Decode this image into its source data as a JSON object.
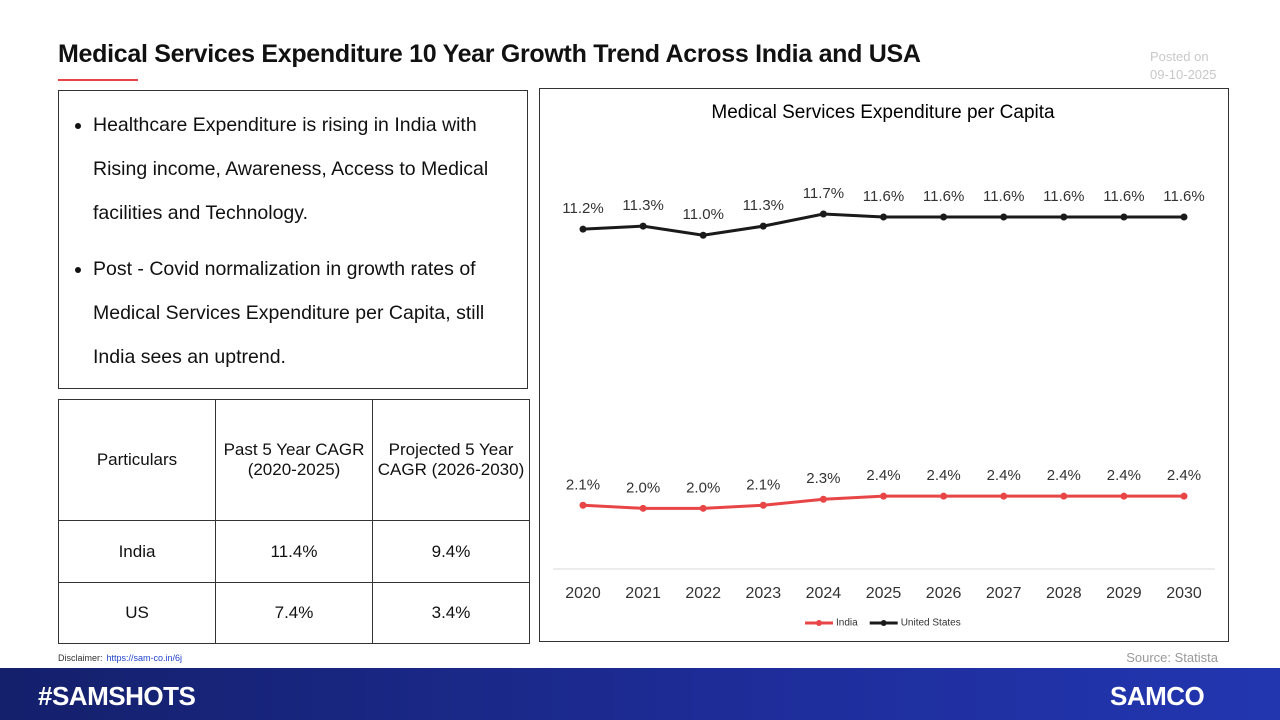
{
  "header": {
    "title": "Medical Services Expenditure 10 Year Growth Trend Across India and USA",
    "posted_label": "Posted on",
    "posted_date": "09-10-2025"
  },
  "bullets": [
    "Healthcare Expenditure is rising in India with Rising income, Awareness, Access to Medical facilities and Technology.",
    "Post - Covid normalization in growth rates of Medical Services Expenditure per Capita, still India sees an uptrend."
  ],
  "table": {
    "header": [
      "Particulars",
      "Past 5 Year CAGR (2020-2025)",
      "Projected 5 Year CAGR (2026-2030)"
    ],
    "rows": [
      [
        "India",
        "11.4%",
        "9.4%"
      ],
      [
        "US",
        "7.4%",
        "3.4%"
      ]
    ]
  },
  "chart_data": {
    "type": "line",
    "title": "Medical Services Expenditure per Capita",
    "categories": [
      "2020",
      "2021",
      "2022",
      "2023",
      "2024",
      "2025",
      "2026",
      "2027",
      "2028",
      "2029",
      "2030"
    ],
    "series": [
      {
        "name": "India",
        "color": "#e84646",
        "values": [
          2.1,
          2.0,
          2.0,
          2.1,
          2.3,
          2.4,
          2.4,
          2.4,
          2.4,
          2.4,
          2.4
        ],
        "value_labels": [
          "2.1%",
          "2.0%",
          "2.0%",
          "2.1%",
          "2.3%",
          "2.4%",
          "2.4%",
          "2.4%",
          "2.4%",
          "2.4%",
          "2.4%"
        ]
      },
      {
        "name": "United States",
        "color": "#1a1a1a",
        "values": [
          11.2,
          11.3,
          11.0,
          11.3,
          11.7,
          11.6,
          11.6,
          11.6,
          11.6,
          11.6,
          11.6
        ],
        "value_labels": [
          "11.2%",
          "11.3%",
          "11.0%",
          "11.3%",
          "11.7%",
          "11.6%",
          "11.6%",
          "11.6%",
          "11.6%",
          "11.6%",
          "11.6%"
        ]
      }
    ],
    "legend": "bottom",
    "source": "Source: Statista"
  },
  "footer": {
    "disclaimer_label": "Disclaimer:",
    "disclaimer_link": "https://sam-co.in/6j",
    "hashtag": "#SAMSHOTS",
    "brand": "SAMCO"
  }
}
